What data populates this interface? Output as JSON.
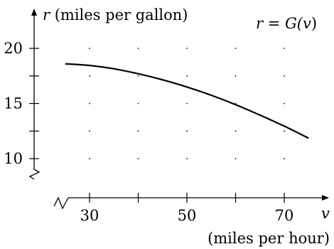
{
  "chart_data": {
    "type": "line",
    "ylabel_var": "r",
    "ylabel_units": "(miles per gallon)",
    "xlabel_var": "v",
    "xlabel_units": "(miles per hour)",
    "function_label": "r = G(v)",
    "function_label_parts": {
      "lhs": "r",
      "eq": "=",
      "fn": "G(",
      "arg": "v",
      "close": ")"
    },
    "x_ticks": [
      30,
      40,
      50,
      60,
      70
    ],
    "x_tick_labels": [
      "30",
      "50",
      "70"
    ],
    "y_ticks": [
      10,
      12.5,
      15,
      17.5,
      20
    ],
    "y_tick_labels": [
      "20",
      "15",
      "10"
    ],
    "xlim": [
      25,
      75
    ],
    "ylim": [
      10,
      20
    ],
    "grid": "dotted",
    "axis_breaks": true,
    "series": [
      {
        "x": [
          25,
          30,
          35,
          40,
          45,
          50,
          55,
          60,
          65,
          70,
          75
        ],
        "y": [
          18.6,
          18.45,
          18.15,
          17.7,
          17.15,
          16.5,
          15.75,
          14.9,
          13.95,
          12.95,
          11.85
        ]
      }
    ]
  }
}
